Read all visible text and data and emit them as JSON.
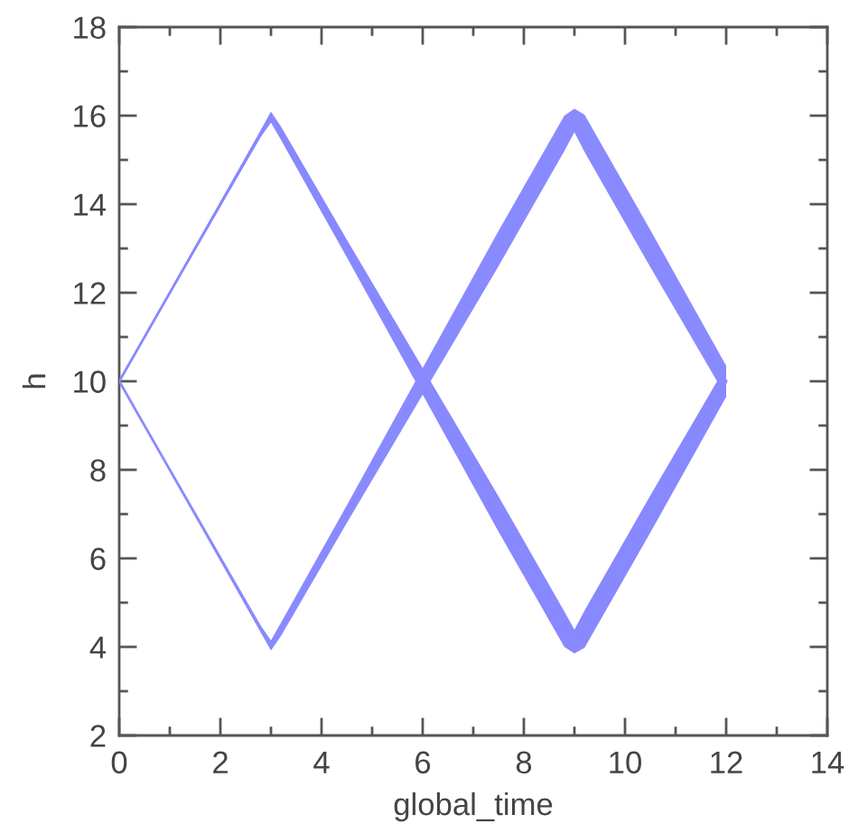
{
  "chart_data": {
    "type": "line",
    "xlabel": "global_time",
    "ylabel": "h",
    "xlim": [
      0,
      14
    ],
    "ylim": [
      2,
      18
    ],
    "xticks": [
      0,
      2,
      4,
      6,
      8,
      10,
      12,
      14
    ],
    "yticks": [
      2,
      4,
      6,
      8,
      10,
      12,
      14,
      16,
      18
    ],
    "series": [
      {
        "color": "#8888ff",
        "x": [
          0,
          1.5,
          2.8,
          3,
          3.2,
          4.5,
          6,
          7.5,
          8.8,
          9,
          9.2,
          10.5,
          12
        ],
        "values": [
          10,
          13,
          15.6,
          16,
          15.6,
          13,
          10,
          7,
          4.4,
          4,
          4.4,
          7,
          10
        ],
        "lower": [
          10,
          12.95,
          15.52,
          15.84,
          15.45,
          12.8,
          9.7,
          6.6,
          4.0,
          3.85,
          3.98,
          6.58,
          9.65
        ],
        "upper": [
          10,
          13.05,
          15.68,
          16.09,
          15.75,
          13.2,
          10.3,
          7.4,
          4.8,
          4.39,
          4.82,
          7.42,
          10.35
        ]
      },
      {
        "color": "#8a8aff",
        "x": [
          0,
          1.5,
          2.8,
          3,
          3.2,
          4.5,
          6,
          7.5,
          8.8,
          9,
          9.2,
          10.5,
          12
        ],
        "values": [
          10,
          7,
          4.4,
          4,
          4.4,
          7,
          10,
          13,
          15.6,
          16,
          15.6,
          13,
          10
        ],
        "lower": [
          10,
          6.95,
          4.32,
          3.92,
          4.25,
          6.8,
          9.7,
          12.6,
          15.2,
          15.63,
          15.18,
          12.58,
          9.65
        ],
        "upper": [
          10,
          7.05,
          4.48,
          4.15,
          4.55,
          7.2,
          10.3,
          13.4,
          16.0,
          16.16,
          16.02,
          13.42,
          10.35
        ]
      }
    ]
  }
}
